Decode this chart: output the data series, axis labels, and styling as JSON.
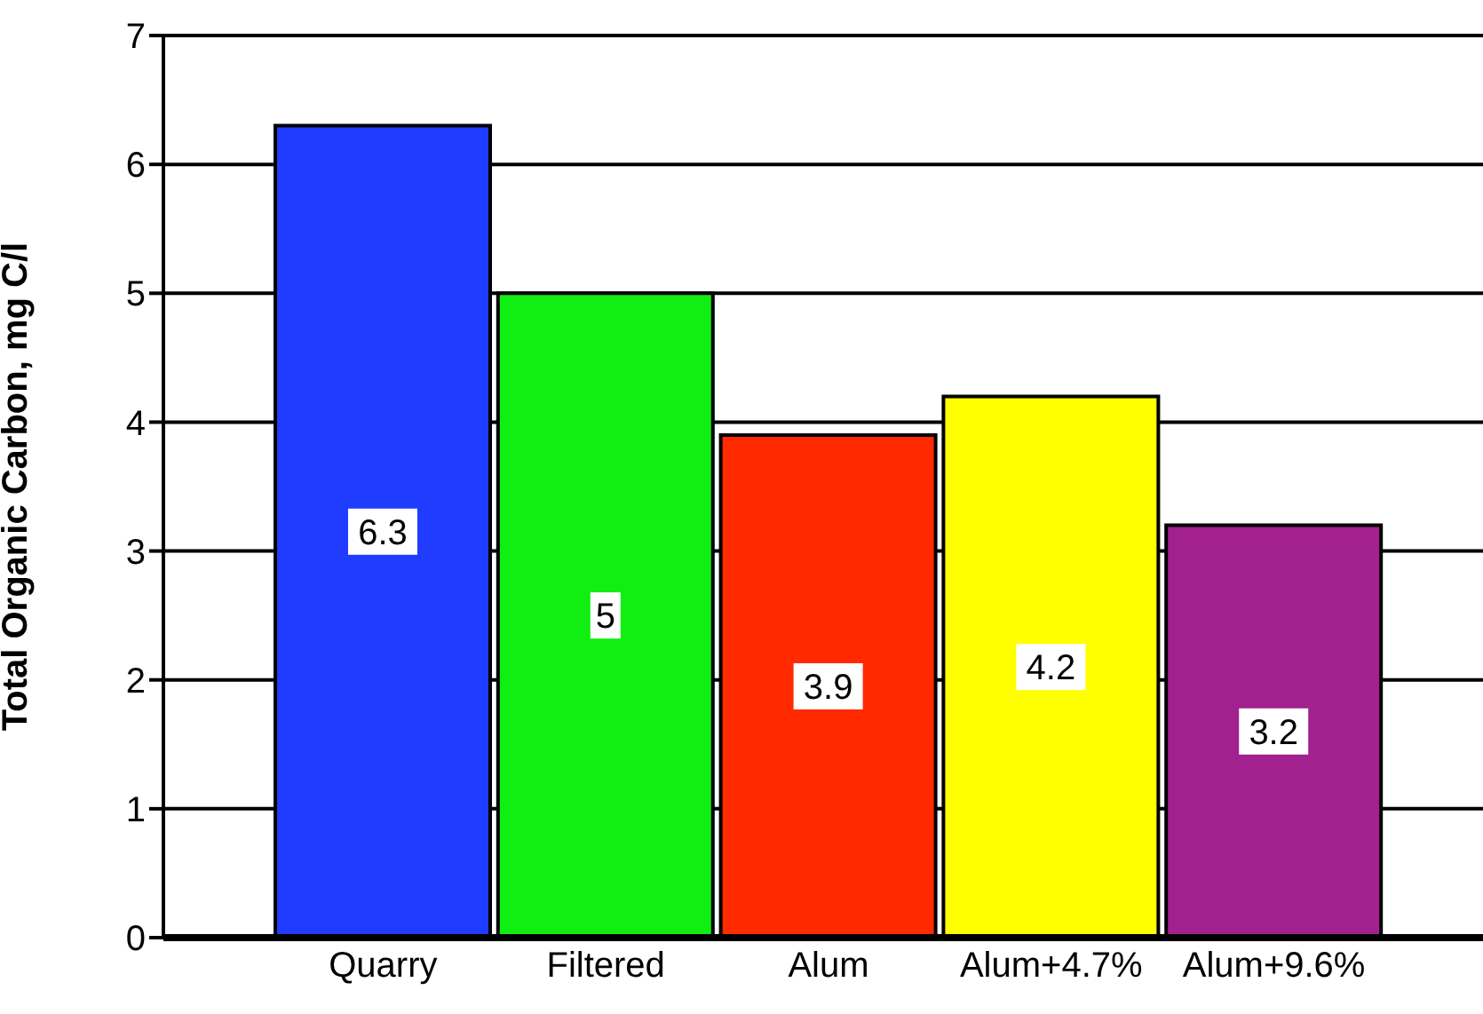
{
  "chart_data": {
    "type": "bar",
    "ylabel": "Total Organic Carbon, mg C/l",
    "categories": [
      "Quarry",
      "Filtered",
      "Alum",
      "Alum+4.7%",
      "Alum+9.6%"
    ],
    "values": [
      6.3,
      5,
      3.9,
      4.2,
      3.2
    ],
    "colors": [
      "#1f3cff",
      "#11ee11",
      "#ff2a00",
      "#ffff00",
      "#a3208f"
    ],
    "ylim": [
      0,
      7
    ],
    "yticks": [
      0,
      1,
      2,
      3,
      4,
      5,
      6,
      7
    ],
    "grid": "y",
    "data_labels": true
  }
}
